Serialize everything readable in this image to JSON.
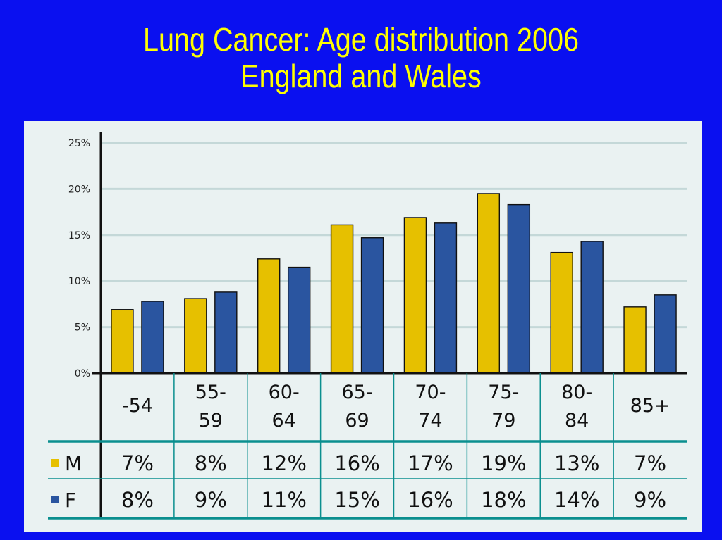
{
  "slide": {
    "title_line1": "Lung Cancer: Age distribution 2006",
    "title_line2": "England and Wales"
  },
  "chart_data": {
    "type": "bar",
    "title": "Lung Cancer: Age distribution 2006 England and Wales",
    "categories": [
      [
        "-54"
      ],
      [
        "55-",
        "59"
      ],
      [
        "60-",
        "64"
      ],
      [
        "65-",
        "69"
      ],
      [
        "70-",
        "74"
      ],
      [
        "75-",
        "79"
      ],
      [
        "80-",
        "84"
      ],
      [
        "85+"
      ]
    ],
    "series": [
      {
        "name": "M",
        "color": "#e6c000",
        "values": [
          6.9,
          8.1,
          12.4,
          16.1,
          16.9,
          19.5,
          13.1,
          7.2
        ],
        "table_labels": [
          "7%",
          "8%",
          "12%",
          "16%",
          "17%",
          "19%",
          "13%",
          "7%"
        ]
      },
      {
        "name": "F",
        "color": "#2a55a0",
        "values": [
          7.8,
          8.8,
          11.5,
          14.7,
          16.3,
          18.3,
          14.3,
          8.5
        ],
        "table_labels": [
          "8%",
          "9%",
          "11%",
          "15%",
          "16%",
          "18%",
          "14%",
          "9%"
        ]
      }
    ],
    "ylim": [
      0,
      25
    ],
    "yticks": [
      0,
      5,
      10,
      15,
      20,
      25
    ],
    "ytick_labels": [
      "0%",
      "5%",
      "10%",
      "15%",
      "20%",
      "25%"
    ],
    "grid": true,
    "legend": "table-left",
    "xlabel": "",
    "ylabel": ""
  }
}
